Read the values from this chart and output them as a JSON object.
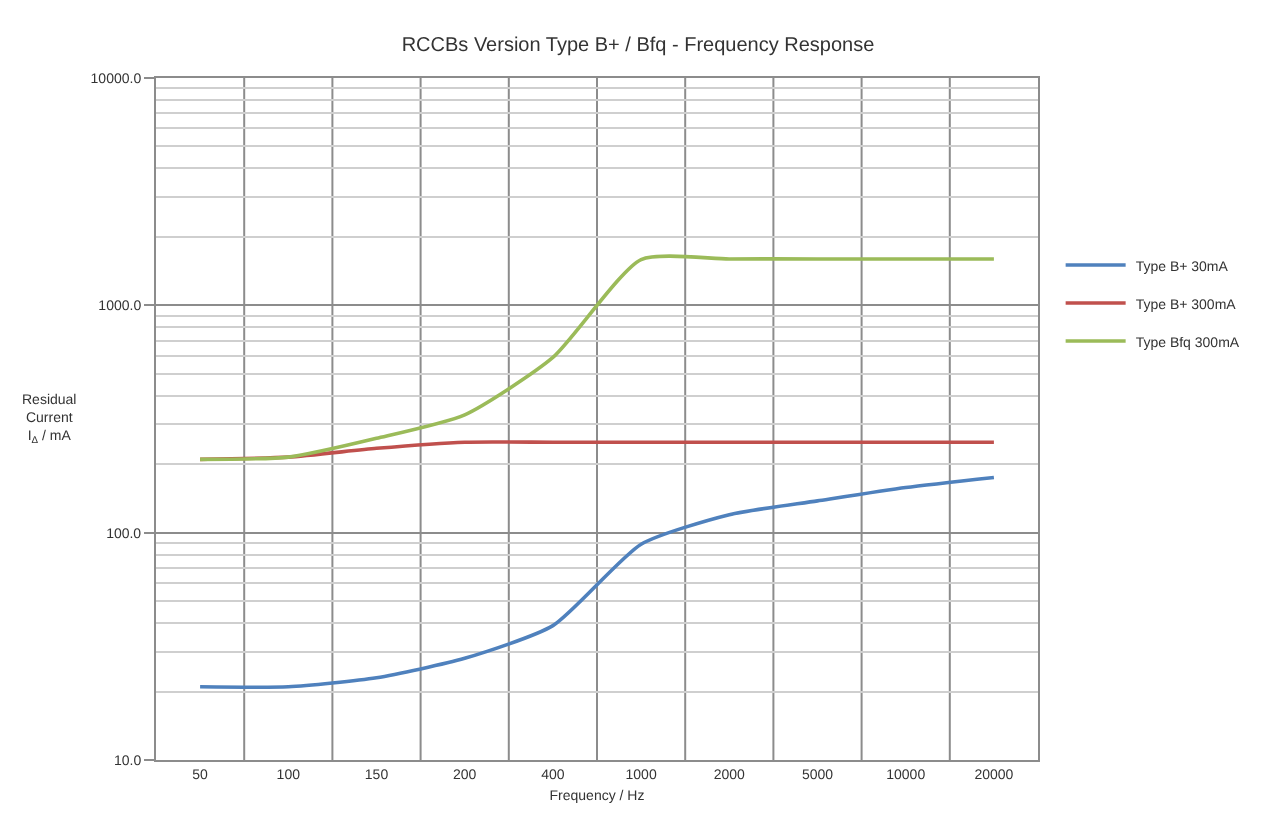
{
  "chart_data": {
    "type": "line",
    "title": "RCCBs Version Type B+ / Bfq - Frequency Response",
    "xlabel": "Frequency / Hz",
    "ylabel": "Residual\nCurrent\nI$_{Δ}$ / mA",
    "categories": [
      "50",
      "100",
      "150",
      "200",
      "400",
      "1000",
      "2000",
      "5000",
      "10000",
      "20000"
    ],
    "series": [
      {
        "name": "Type B+ 30mA",
        "color": "#4f81bd",
        "values": [
          21,
          21,
          23,
          28,
          39,
          89,
          120,
          138,
          158,
          175
        ]
      },
      {
        "name": "Type B+ 300mA",
        "color": "#c0504d",
        "values": [
          210,
          215,
          235,
          250,
          250,
          250,
          250,
          250,
          250,
          250
        ]
      },
      {
        "name": "Type Bfq 300mA",
        "color": "#9bbb59",
        "values": [
          210,
          215,
          260,
          330,
          590,
          1590,
          1600,
          1600,
          1600,
          1600
        ]
      }
    ],
    "log": true,
    "ylim": [
      10,
      10000
    ],
    "yticks": [
      {
        "value": 10,
        "label": "10.0"
      },
      {
        "value": 100,
        "label": "100.0"
      },
      {
        "value": 1000,
        "label": "1000.0"
      },
      {
        "value": 10000,
        "label": "10000.0"
      }
    ],
    "grid": true,
    "legend": "right",
    "marker": "none",
    "line_style": "solid"
  }
}
